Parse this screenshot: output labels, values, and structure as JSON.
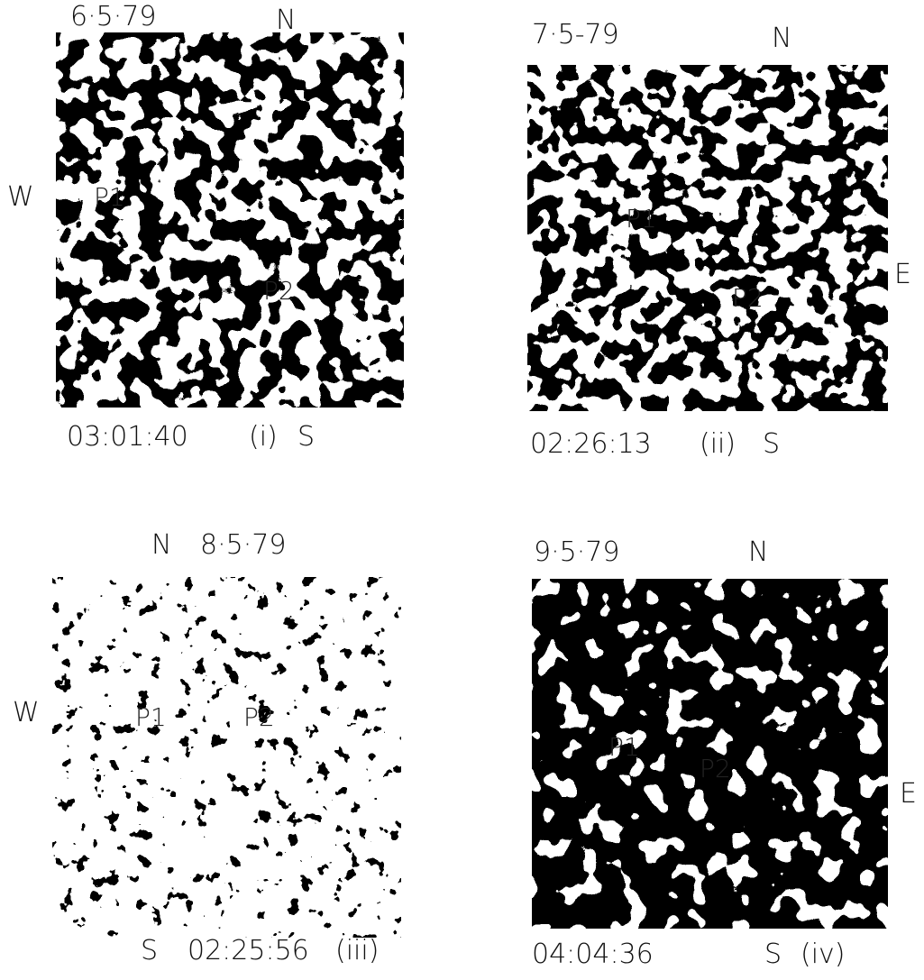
{
  "panels": [
    {
      "date": "6·5·79",
      "north": "N",
      "west": "W",
      "features": [
        "P1",
        "P2"
      ],
      "time": "03:01:40",
      "label": "(i)",
      "south": "S"
    },
    {
      "date": "7·5-79",
      "north": "N",
      "east": "E",
      "features": [
        "P1",
        "P2"
      ],
      "time": "02:26:13",
      "label": "(ii)",
      "south": "S"
    },
    {
      "date": "8·5·79",
      "north": "N",
      "west": "W",
      "features": [
        "P1",
        "P2"
      ],
      "time": "02:25:56",
      "label": "(iii)",
      "south": "S"
    },
    {
      "date": "9·5·79",
      "north": "N",
      "east": "E",
      "features": [
        "P1",
        "P2"
      ],
      "time": "04:04:36",
      "label": "(iv)",
      "south": "S"
    }
  ]
}
